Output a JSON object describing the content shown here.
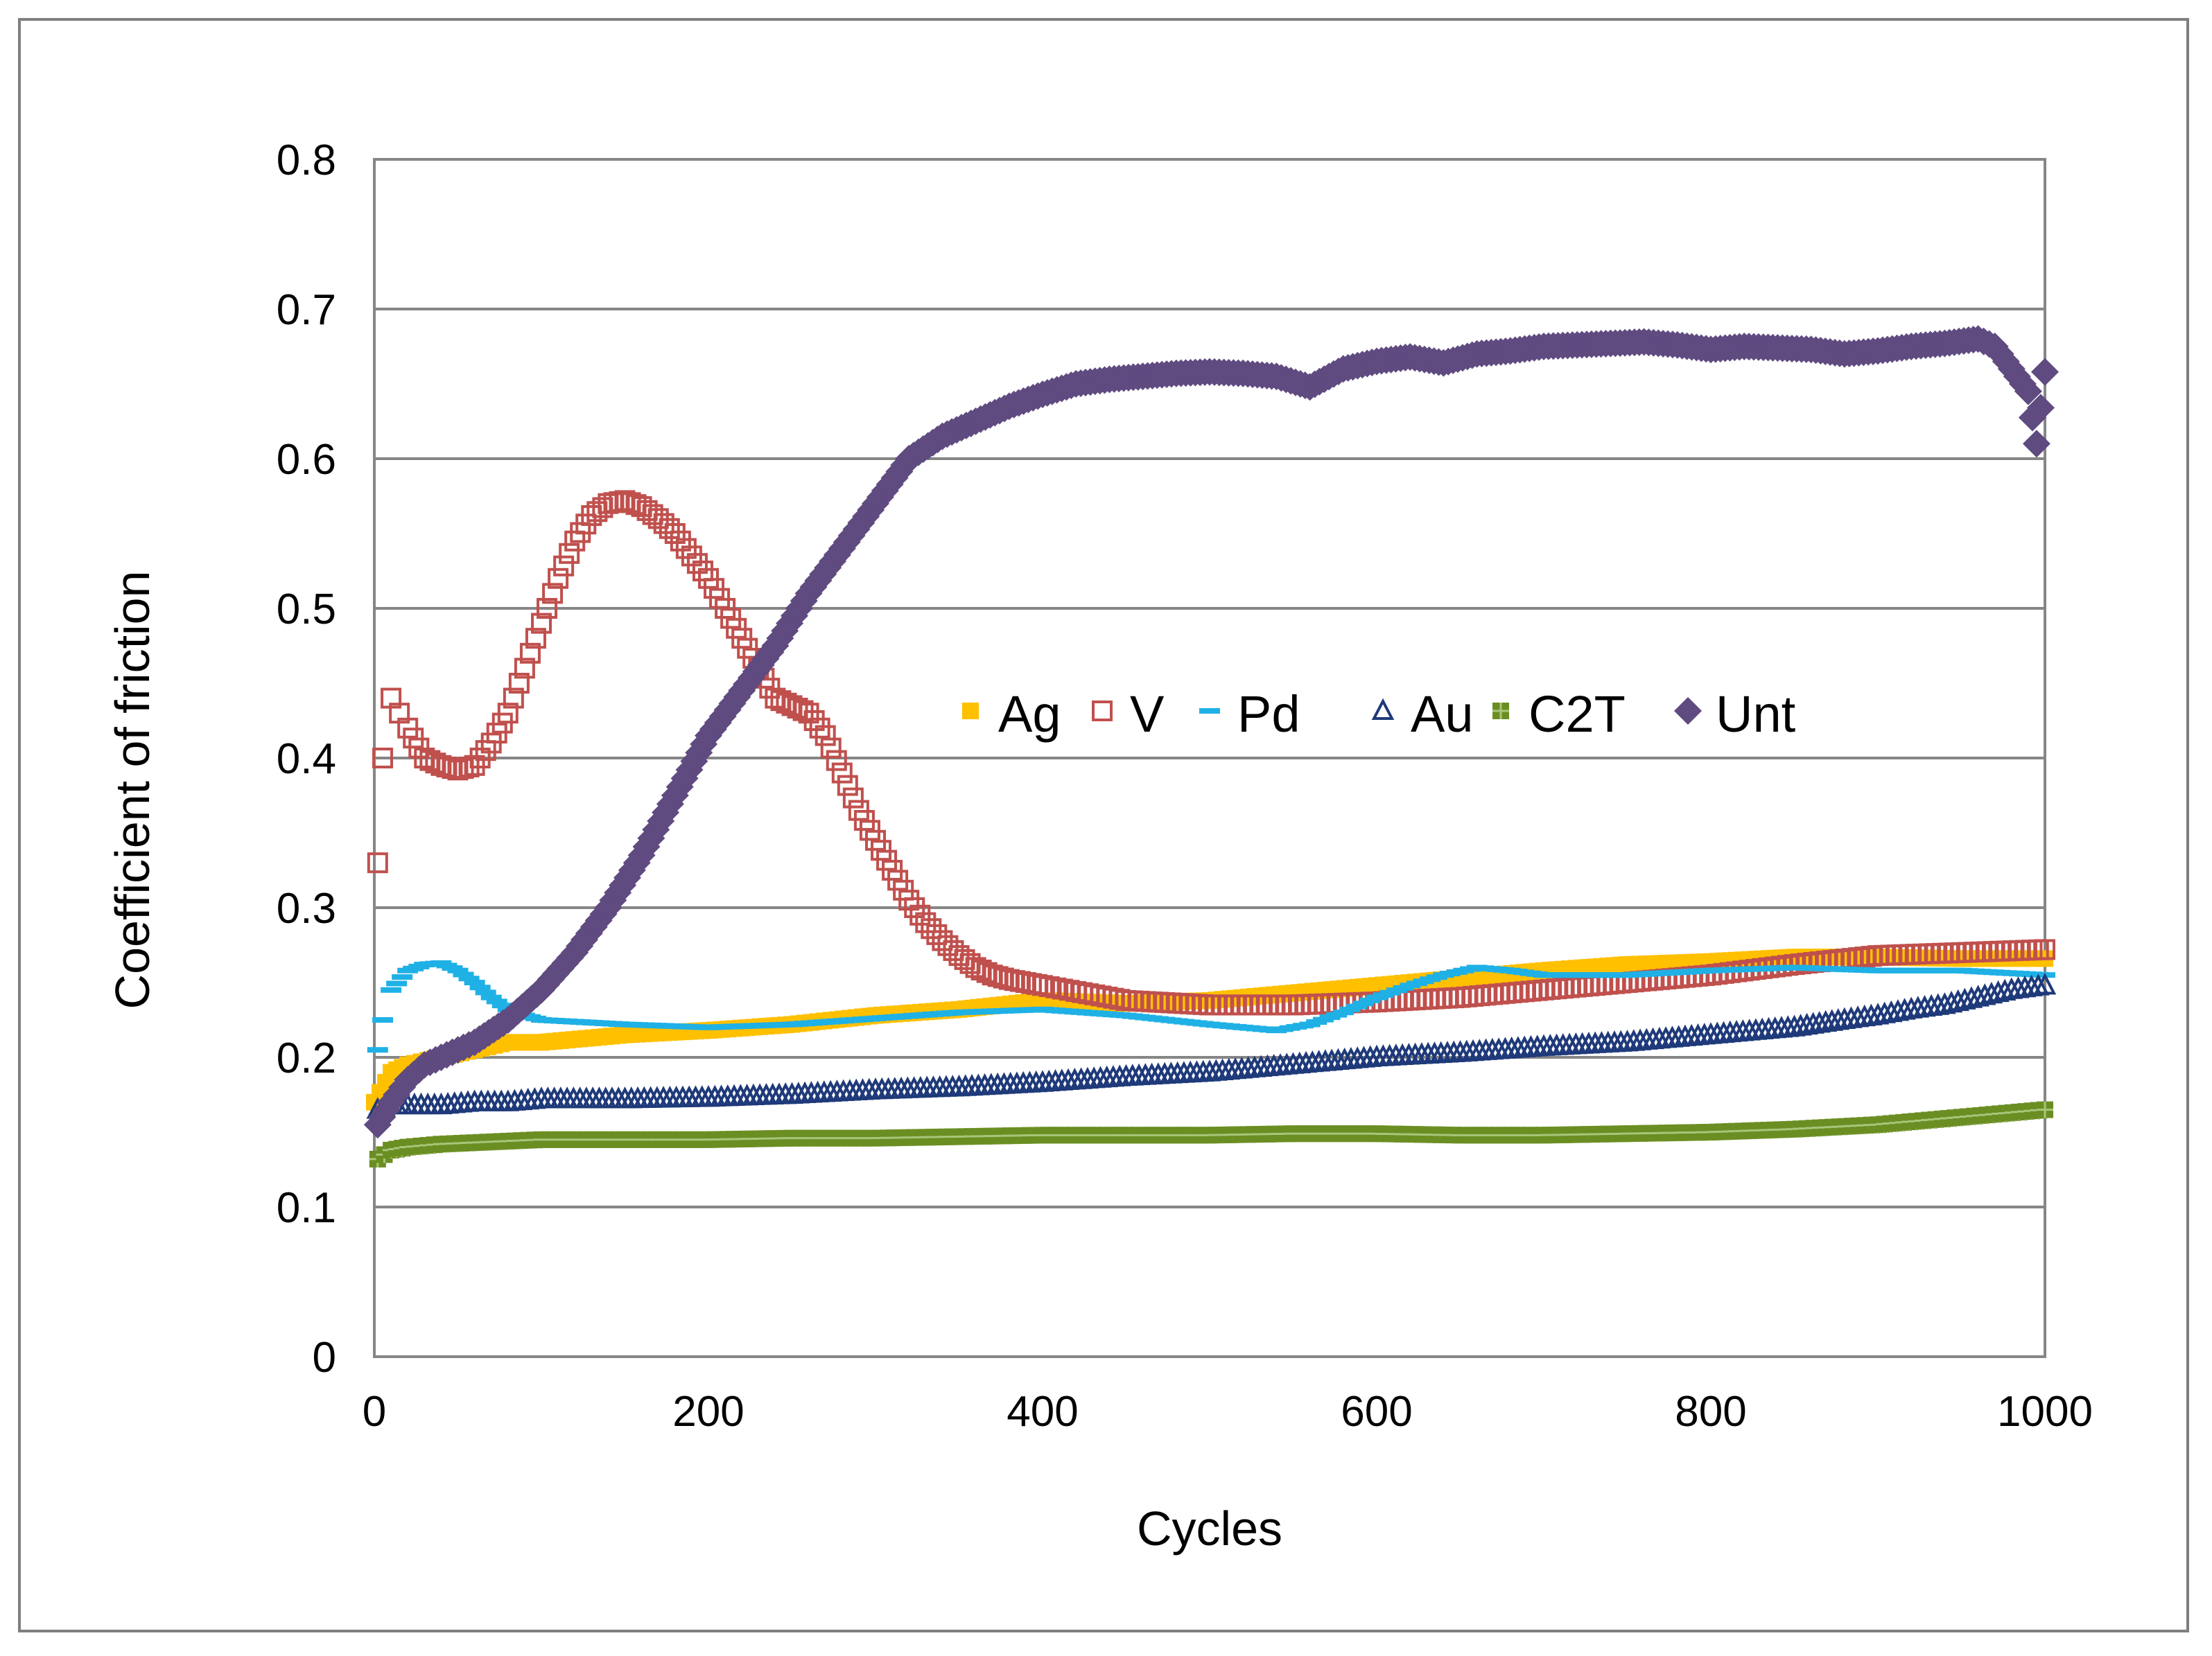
{
  "chart_data": {
    "type": "scatter",
    "title": "",
    "xlabel": "Cycles",
    "ylabel": "Coefficient of friction",
    "xlim": [
      0,
      1000
    ],
    "ylim": [
      0,
      0.8
    ],
    "x_ticks": [
      "0",
      "200",
      "400",
      "600",
      "800",
      "1000"
    ],
    "y_ticks": [
      "0",
      "0.1",
      "0.2",
      "0.3",
      "0.4",
      "0.5",
      "0.6",
      "0.7",
      "0.8"
    ],
    "grid": "horizontal",
    "legend_position": "center-right",
    "series": [
      {
        "name": "Ag",
        "marker": "filled-square",
        "color": "#FFC000",
        "x": [
          0,
          10,
          20,
          40,
          60,
          80,
          100,
          150,
          200,
          250,
          300,
          350,
          400,
          450,
          500,
          550,
          600,
          650,
          700,
          750,
          800,
          850,
          900,
          950,
          1000
        ],
        "y": [
          0.17,
          0.19,
          0.195,
          0.2,
          0.205,
          0.21,
          0.21,
          0.215,
          0.218,
          0.222,
          0.228,
          0.232,
          0.238,
          0.236,
          0.238,
          0.243,
          0.248,
          0.253,
          0.258,
          0.262,
          0.264,
          0.267,
          0.267,
          0.266,
          0.266
        ]
      },
      {
        "name": "V",
        "marker": "open-square",
        "color": "#C0504D",
        "x": [
          2,
          5,
          10,
          15,
          20,
          30,
          40,
          50,
          60,
          70,
          80,
          90,
          100,
          110,
          120,
          130,
          140,
          150,
          160,
          170,
          180,
          190,
          200,
          210,
          220,
          230,
          240,
          250,
          260,
          270,
          280,
          290,
          300,
          310,
          320,
          330,
          340,
          350,
          360,
          370,
          380,
          390,
          400,
          420,
          450,
          500,
          550,
          600,
          650,
          700,
          750,
          800,
          850,
          900,
          950,
          1000
        ],
        "y": [
          0.33,
          0.4,
          0.44,
          0.43,
          0.42,
          0.4,
          0.395,
          0.392,
          0.395,
          0.41,
          0.43,
          0.46,
          0.49,
          0.52,
          0.545,
          0.562,
          0.57,
          0.572,
          0.568,
          0.56,
          0.55,
          0.535,
          0.52,
          0.5,
          0.48,
          0.46,
          0.44,
          0.435,
          0.43,
          0.415,
          0.39,
          0.365,
          0.345,
          0.325,
          0.305,
          0.29,
          0.278,
          0.268,
          0.26,
          0.255,
          0.252,
          0.25,
          0.248,
          0.244,
          0.238,
          0.235,
          0.235,
          0.237,
          0.24,
          0.245,
          0.25,
          0.255,
          0.262,
          0.268,
          0.27,
          0.272
        ]
      },
      {
        "name": "Pd",
        "marker": "dash",
        "color": "#1FB1E6",
        "x": [
          2,
          5,
          10,
          20,
          30,
          40,
          50,
          60,
          70,
          80,
          90,
          100,
          150,
          200,
          250,
          300,
          350,
          400,
          450,
          500,
          540,
          560,
          580,
          600,
          620,
          640,
          660,
          680,
          700,
          750,
          800,
          850,
          900,
          950,
          1000
        ],
        "y": [
          0.205,
          0.225,
          0.245,
          0.258,
          0.262,
          0.263,
          0.258,
          0.25,
          0.24,
          0.232,
          0.228,
          0.225,
          0.222,
          0.22,
          0.222,
          0.226,
          0.23,
          0.232,
          0.228,
          0.222,
          0.218,
          0.222,
          0.23,
          0.24,
          0.248,
          0.255,
          0.26,
          0.258,
          0.255,
          0.255,
          0.258,
          0.26,
          0.258,
          0.258,
          0.255
        ]
      },
      {
        "name": "Au",
        "marker": "open-triangle",
        "color": "#1F3A7A",
        "x": [
          2,
          10,
          20,
          40,
          60,
          80,
          100,
          150,
          200,
          250,
          300,
          350,
          400,
          450,
          500,
          550,
          600,
          650,
          700,
          750,
          800,
          850,
          880,
          900,
          920,
          940,
          960,
          980,
          1000
        ],
        "y": [
          0.165,
          0.168,
          0.168,
          0.168,
          0.17,
          0.17,
          0.172,
          0.172,
          0.173,
          0.175,
          0.178,
          0.18,
          0.183,
          0.187,
          0.19,
          0.195,
          0.2,
          0.203,
          0.207,
          0.21,
          0.215,
          0.22,
          0.225,
          0.228,
          0.232,
          0.235,
          0.24,
          0.245,
          0.248
        ]
      },
      {
        "name": "C2T",
        "marker": "filled-square-cross",
        "color": "#6B8E23",
        "x": [
          2,
          10,
          20,
          40,
          60,
          80,
          100,
          150,
          200,
          250,
          300,
          350,
          400,
          450,
          500,
          550,
          600,
          650,
          700,
          750,
          800,
          850,
          900,
          950,
          1000
        ],
        "y": [
          0.132,
          0.138,
          0.14,
          0.142,
          0.143,
          0.144,
          0.145,
          0.145,
          0.145,
          0.146,
          0.146,
          0.147,
          0.148,
          0.148,
          0.148,
          0.149,
          0.149,
          0.148,
          0.148,
          0.149,
          0.15,
          0.152,
          0.155,
          0.16,
          0.165
        ]
      },
      {
        "name": "Unt",
        "marker": "filled-diamond",
        "color": "#5F4B80",
        "x": [
          2,
          10,
          20,
          30,
          40,
          50,
          60,
          80,
          100,
          120,
          140,
          160,
          180,
          200,
          220,
          240,
          260,
          280,
          300,
          320,
          340,
          360,
          380,
          400,
          420,
          440,
          460,
          480,
          500,
          520,
          540,
          560,
          580,
          600,
          620,
          640,
          660,
          680,
          700,
          720,
          740,
          760,
          780,
          800,
          820,
          840,
          860,
          880,
          900,
          920,
          940,
          960,
          970,
          980,
          990,
          995,
          1000
        ],
        "y": [
          0.155,
          0.17,
          0.185,
          0.195,
          0.2,
          0.205,
          0.21,
          0.225,
          0.245,
          0.27,
          0.3,
          0.335,
          0.375,
          0.415,
          0.445,
          0.475,
          0.51,
          0.54,
          0.57,
          0.6,
          0.615,
          0.625,
          0.635,
          0.643,
          0.65,
          0.653,
          0.655,
          0.657,
          0.658,
          0.657,
          0.655,
          0.648,
          0.66,
          0.665,
          0.668,
          0.664,
          0.67,
          0.672,
          0.675,
          0.676,
          0.677,
          0.678,
          0.676,
          0.673,
          0.675,
          0.674,
          0.673,
          0.67,
          0.672,
          0.675,
          0.677,
          0.68,
          0.675,
          0.66,
          0.645,
          0.61,
          0.658
        ]
      }
    ]
  }
}
